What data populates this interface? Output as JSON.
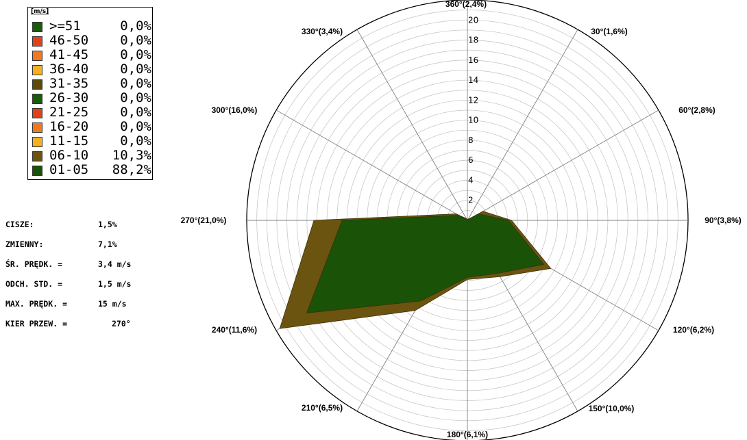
{
  "legend": {
    "unit": "[m/s]",
    "items": [
      {
        "range": ">=51",
        "pct": "0,0%",
        "color": "#1a5c0a"
      },
      {
        "range": "46-50",
        "pct": "0,0%",
        "color": "#e0401a"
      },
      {
        "range": "41-45",
        "pct": "0,0%",
        "color": "#f07820"
      },
      {
        "range": "36-40",
        "pct": "0,0%",
        "color": "#f5b020"
      },
      {
        "range": "31-35",
        "pct": "0,0%",
        "color": "#5c4a0a"
      },
      {
        "range": "26-30",
        "pct": "0,0%",
        "color": "#1a5c0a"
      },
      {
        "range": "21-25",
        "pct": "0,0%",
        "color": "#e0401a"
      },
      {
        "range": "16-20",
        "pct": "0,0%",
        "color": "#f07820"
      },
      {
        "range": "11-15",
        "pct": "0,0%",
        "color": "#f5b020"
      },
      {
        "range": "06-10",
        "pct": "10,3%",
        "color": "#6b5410"
      },
      {
        "range": "01-05",
        "pct": "88,2%",
        "color": "#1a5208"
      }
    ]
  },
  "stats": [
    {
      "label": "CISZE:",
      "value": "1,5%"
    },
    {
      "label": "ZMIENNY:",
      "value": "7,1%"
    },
    {
      "label": "ŚR. PRĘDK. =",
      "value": "3,4 m/s"
    },
    {
      "label": "ODCH. STD. =",
      "value": "1,5 m/s"
    },
    {
      "label": "MAX. PRĘDK. =",
      "value": "15 m/s"
    },
    {
      "label": "KIER PRZEW. =",
      "value": "270°"
    }
  ],
  "chart_data": {
    "type": "radar",
    "radial_ticks": [
      "2",
      "4",
      "6",
      "8",
      "10",
      "12",
      "14",
      "16",
      "18",
      "20"
    ],
    "rmax": 22,
    "directions": [
      {
        "angle": 30,
        "label": "30°(1,6%)"
      },
      {
        "angle": 60,
        "label": "60°(2,8%)"
      },
      {
        "angle": 90,
        "label": "90°(3,8%)"
      },
      {
        "angle": 120,
        "label": "120°(6,2%)"
      },
      {
        "angle": 150,
        "label": "150°(10,0%)"
      },
      {
        "angle": 180,
        "label": "180°(6,1%)"
      },
      {
        "angle": 210,
        "label": "210°(6,5%)"
      },
      {
        "angle": 240,
        "label": "240°(11,6%)"
      },
      {
        "angle": 270,
        "label": "270°(21,0%)"
      },
      {
        "angle": 300,
        "label": "300°(16,0%)"
      },
      {
        "angle": 330,
        "label": "330°(3,4%)"
      },
      {
        "angle": 360,
        "label": "360°(2,4%)"
      }
    ],
    "series": [
      {
        "name": "06-10",
        "color": "#6b5410",
        "values": [
          0.1,
          1.8,
          4.4,
          9.6,
          6.5,
          5.9,
          10.4,
          21.6,
          15.3,
          1.3,
          0.2,
          0.1
        ]
      },
      {
        "name": "01-05",
        "color": "#1a5208",
        "values": [
          0.1,
          1.3,
          4.1,
          8.8,
          6.1,
          5.7,
          9.3,
          18.5,
          12.5,
          1.0,
          0.1,
          0.1
        ]
      }
    ]
  }
}
